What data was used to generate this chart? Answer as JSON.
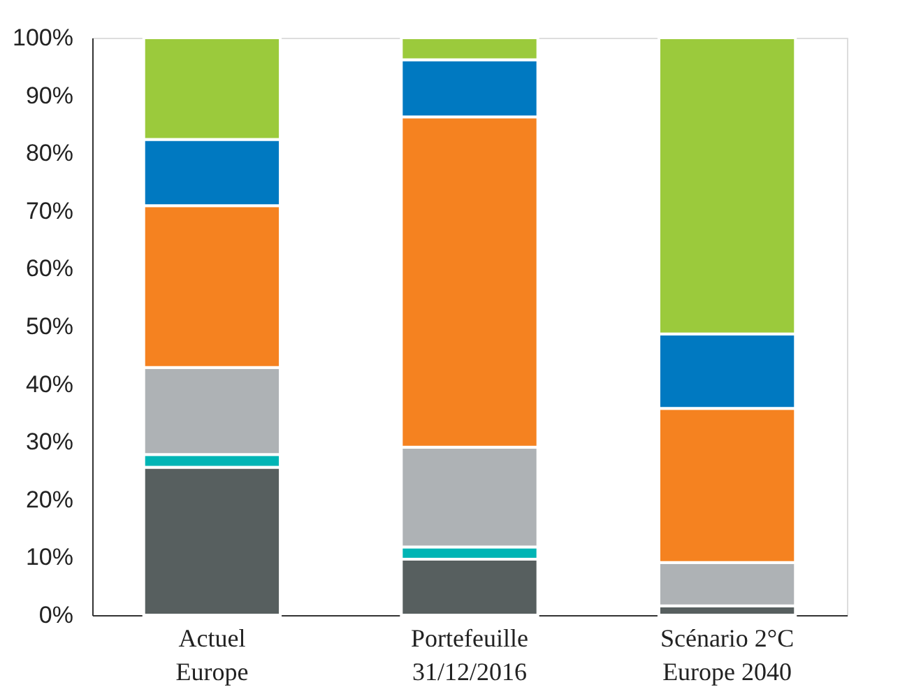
{
  "chart_data": {
    "type": "bar",
    "stacked": true,
    "categories": [
      "Actuel\nEurope",
      "Portefeuille\n31/12/2016",
      "Scénario 2°C\nEurope 2040"
    ],
    "series": [
      {
        "color": "#575f5f",
        "values": [
          25.6,
          9.7,
          1.6
        ]
      },
      {
        "color": "#00b5b5",
        "values": [
          2.2,
          2.1,
          null
        ]
      },
      {
        "color": "#aeb2b5",
        "values": [
          15.1,
          17.3,
          7.5
        ]
      },
      {
        "color": "#f58220",
        "values": [
          28.0,
          57.2,
          26.7
        ]
      },
      {
        "color": "#0079c1",
        "values": [
          11.5,
          9.9,
          12.9
        ]
      },
      {
        "color": "#9bca3c",
        "values": [
          17.6,
          3.8,
          51.3
        ]
      }
    ],
    "ylim": [
      0,
      100
    ],
    "yticks": [
      {
        "value": 0,
        "label": "0%"
      },
      {
        "value": 10,
        "label": "10%"
      },
      {
        "value": 20,
        "label": "20%"
      },
      {
        "value": 30,
        "label": "30%"
      },
      {
        "value": 40,
        "label": "40%"
      },
      {
        "value": 50,
        "label": "50%"
      },
      {
        "value": 60,
        "label": "60%"
      },
      {
        "value": 70,
        "label": "70%"
      },
      {
        "value": 80,
        "label": "80%"
      },
      {
        "value": 90,
        "label": "90%"
      },
      {
        "value": 100,
        "label": "100%"
      }
    ],
    "grid": false,
    "legend": false
  }
}
